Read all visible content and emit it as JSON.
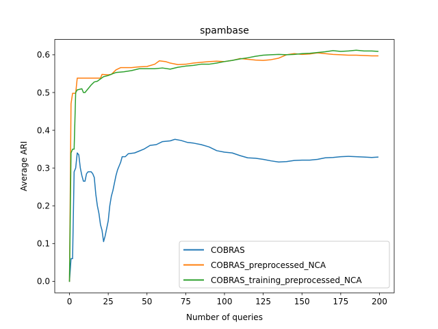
{
  "chart_data": {
    "type": "line",
    "title": "spambase",
    "xlabel": "Number of queries",
    "ylabel": "Average ARI",
    "xlim": [
      -9.5,
      209.5
    ],
    "ylim": [
      -0.0305,
      0.6405
    ],
    "x_ticks": [
      0,
      25,
      50,
      75,
      100,
      125,
      150,
      175,
      200
    ],
    "y_ticks": [
      0.0,
      0.1,
      0.2,
      0.3,
      0.4,
      0.5,
      0.6
    ],
    "x_tick_labels": [
      "0",
      "25",
      "50",
      "75",
      "100",
      "125",
      "150",
      "175",
      "200"
    ],
    "y_tick_labels": [
      "0.0",
      "0.1",
      "0.2",
      "0.3",
      "0.4",
      "0.5",
      "0.6"
    ],
    "grid": false,
    "legend": "lower-right",
    "series": [
      {
        "name": "COBRAS",
        "color": "#1f77b4",
        "points": [
          [
            0,
            0.0
          ],
          [
            1,
            0.06
          ],
          [
            2,
            0.06
          ],
          [
            3,
            0.29
          ],
          [
            4,
            0.3
          ],
          [
            5,
            0.34
          ],
          [
            6,
            0.335
          ],
          [
            7,
            0.3
          ],
          [
            8,
            0.28
          ],
          [
            9,
            0.265
          ],
          [
            10,
            0.265
          ],
          [
            11,
            0.285
          ],
          [
            12,
            0.29
          ],
          [
            14,
            0.29
          ],
          [
            15,
            0.285
          ],
          [
            16,
            0.275
          ],
          [
            17,
            0.23
          ],
          [
            18,
            0.2
          ],
          [
            19,
            0.18
          ],
          [
            20,
            0.15
          ],
          [
            21,
            0.135
          ],
          [
            22,
            0.105
          ],
          [
            23,
            0.12
          ],
          [
            24,
            0.14
          ],
          [
            25,
            0.16
          ],
          [
            26,
            0.2
          ],
          [
            27,
            0.225
          ],
          [
            28,
            0.24
          ],
          [
            29,
            0.26
          ],
          [
            30,
            0.28
          ],
          [
            31,
            0.295
          ],
          [
            32,
            0.305
          ],
          [
            33,
            0.315
          ],
          [
            34,
            0.33
          ],
          [
            36,
            0.33
          ],
          [
            38,
            0.338
          ],
          [
            42,
            0.34
          ],
          [
            45,
            0.345
          ],
          [
            48,
            0.35
          ],
          [
            52,
            0.36
          ],
          [
            56,
            0.362
          ],
          [
            60,
            0.37
          ],
          [
            65,
            0.372
          ],
          [
            68,
            0.376
          ],
          [
            72,
            0.373
          ],
          [
            76,
            0.368
          ],
          [
            80,
            0.366
          ],
          [
            85,
            0.362
          ],
          [
            90,
            0.356
          ],
          [
            95,
            0.346
          ],
          [
            100,
            0.342
          ],
          [
            105,
            0.34
          ],
          [
            110,
            0.333
          ],
          [
            115,
            0.327
          ],
          [
            120,
            0.326
          ],
          [
            125,
            0.323
          ],
          [
            130,
            0.319
          ],
          [
            135,
            0.316
          ],
          [
            140,
            0.317
          ],
          [
            145,
            0.32
          ],
          [
            150,
            0.321
          ],
          [
            155,
            0.321
          ],
          [
            160,
            0.323
          ],
          [
            165,
            0.327
          ],
          [
            170,
            0.328
          ],
          [
            175,
            0.33
          ],
          [
            180,
            0.331
          ],
          [
            185,
            0.33
          ],
          [
            190,
            0.329
          ],
          [
            195,
            0.328
          ],
          [
            199,
            0.329
          ]
        ]
      },
      {
        "name": "COBRAS_preprocessed_NCA",
        "color": "#ff7f0e",
        "points": [
          [
            0,
            0.0
          ],
          [
            1,
            0.47
          ],
          [
            2,
            0.498
          ],
          [
            4,
            0.498
          ],
          [
            5,
            0.538
          ],
          [
            20,
            0.538
          ],
          [
            21,
            0.548
          ],
          [
            25,
            0.547
          ],
          [
            27,
            0.548
          ],
          [
            30,
            0.56
          ],
          [
            33,
            0.566
          ],
          [
            40,
            0.566
          ],
          [
            45,
            0.568
          ],
          [
            50,
            0.569
          ],
          [
            55,
            0.575
          ],
          [
            58,
            0.584
          ],
          [
            62,
            0.582
          ],
          [
            65,
            0.578
          ],
          [
            70,
            0.574
          ],
          [
            75,
            0.575
          ],
          [
            80,
            0.578
          ],
          [
            85,
            0.58
          ],
          [
            90,
            0.582
          ],
          [
            95,
            0.583
          ],
          [
            100,
            0.582
          ],
          [
            105,
            0.585
          ],
          [
            110,
            0.59
          ],
          [
            115,
            0.588
          ],
          [
            120,
            0.586
          ],
          [
            125,
            0.585
          ],
          [
            130,
            0.587
          ],
          [
            135,
            0.591
          ],
          [
            140,
            0.6
          ],
          [
            145,
            0.603
          ],
          [
            150,
            0.601
          ],
          [
            155,
            0.602
          ],
          [
            160,
            0.605
          ],
          [
            165,
            0.603
          ],
          [
            170,
            0.601
          ],
          [
            175,
            0.6
          ],
          [
            180,
            0.599
          ],
          [
            185,
            0.599
          ],
          [
            190,
            0.598
          ],
          [
            195,
            0.597
          ],
          [
            199,
            0.597
          ]
        ]
      },
      {
        "name": "COBRAS_training_preprocessed_NCA",
        "color": "#2ca02c",
        "points": [
          [
            0,
            0.0
          ],
          [
            1,
            0.34
          ],
          [
            2,
            0.35
          ],
          [
            3,
            0.35
          ],
          [
            4,
            0.5
          ],
          [
            5,
            0.507
          ],
          [
            8,
            0.51
          ],
          [
            9,
            0.5
          ],
          [
            10,
            0.5
          ],
          [
            12,
            0.51
          ],
          [
            14,
            0.52
          ],
          [
            16,
            0.528
          ],
          [
            18,
            0.53
          ],
          [
            20,
            0.536
          ],
          [
            22,
            0.542
          ],
          [
            25,
            0.545
          ],
          [
            28,
            0.55
          ],
          [
            30,
            0.553
          ],
          [
            35,
            0.555
          ],
          [
            40,
            0.558
          ],
          [
            45,
            0.563
          ],
          [
            50,
            0.563
          ],
          [
            55,
            0.563
          ],
          [
            60,
            0.565
          ],
          [
            65,
            0.562
          ],
          [
            70,
            0.567
          ],
          [
            75,
            0.57
          ],
          [
            80,
            0.572
          ],
          [
            85,
            0.575
          ],
          [
            90,
            0.575
          ],
          [
            95,
            0.578
          ],
          [
            100,
            0.582
          ],
          [
            105,
            0.585
          ],
          [
            110,
            0.589
          ],
          [
            115,
            0.592
          ],
          [
            120,
            0.596
          ],
          [
            125,
            0.599
          ],
          [
            130,
            0.6
          ],
          [
            135,
            0.601
          ],
          [
            140,
            0.6
          ],
          [
            145,
            0.601
          ],
          [
            150,
            0.603
          ],
          [
            155,
            0.604
          ],
          [
            160,
            0.606
          ],
          [
            165,
            0.608
          ],
          [
            170,
            0.611
          ],
          [
            175,
            0.609
          ],
          [
            180,
            0.61
          ],
          [
            185,
            0.612
          ],
          [
            190,
            0.61
          ],
          [
            195,
            0.61
          ],
          [
            199,
            0.609
          ]
        ]
      }
    ]
  }
}
